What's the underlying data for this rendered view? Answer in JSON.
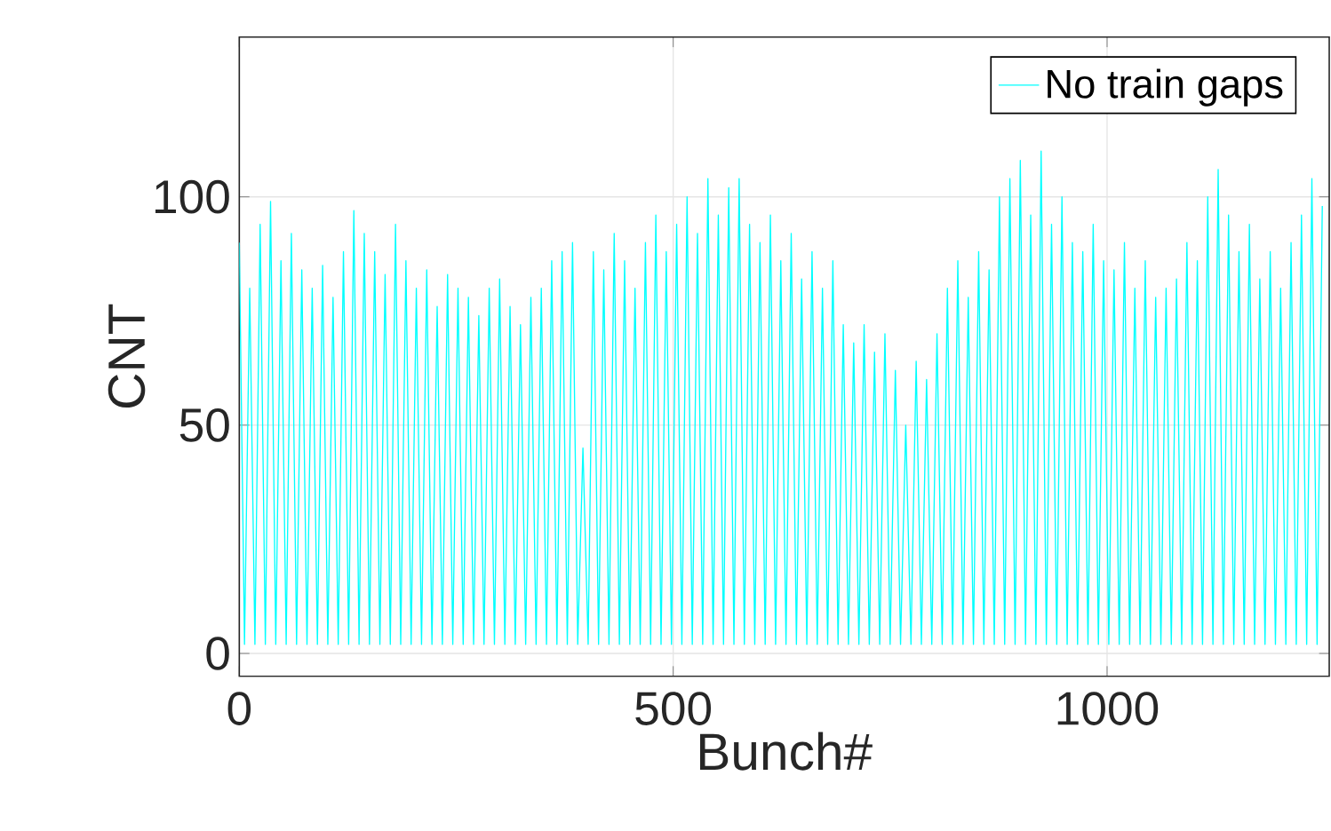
{
  "chart_data": {
    "type": "line",
    "xlabel": "Bunch#",
    "ylabel": "CNT",
    "xlim": [
      0,
      1256
    ],
    "ylim": [
      -5,
      135
    ],
    "xticks": [
      0,
      500,
      1000
    ],
    "yticks": [
      0,
      50,
      100
    ],
    "grid": true,
    "legend": "top right",
    "series": [
      {
        "name": "No train gaps",
        "color": "#00ffff",
        "x": [
          0,
          6,
          12,
          18,
          24,
          30,
          36,
          42,
          48,
          54,
          60,
          66,
          72,
          78,
          84,
          90,
          96,
          102,
          108,
          114,
          120,
          126,
          132,
          138,
          144,
          150,
          156,
          162,
          168,
          174,
          180,
          186,
          192,
          198,
          204,
          210,
          216,
          222,
          228,
          234,
          240,
          246,
          252,
          258,
          264,
          270,
          276,
          282,
          288,
          294,
          300,
          306,
          312,
          318,
          324,
          330,
          336,
          342,
          348,
          354,
          360,
          366,
          372,
          378,
          384,
          390,
          396,
          402,
          408,
          414,
          420,
          426,
          432,
          438,
          444,
          450,
          456,
          462,
          468,
          474,
          480,
          486,
          492,
          498,
          504,
          510,
          516,
          522,
          528,
          534,
          540,
          546,
          552,
          558,
          564,
          570,
          576,
          582,
          588,
          594,
          600,
          606,
          612,
          618,
          624,
          630,
          636,
          642,
          648,
          654,
          660,
          666,
          672,
          678,
          684,
          690,
          696,
          702,
          708,
          714,
          720,
          726,
          732,
          738,
          744,
          750,
          756,
          762,
          768,
          774,
          780,
          786,
          792,
          798,
          804,
          810,
          816,
          822,
          828,
          834,
          840,
          846,
          852,
          858,
          864,
          870,
          876,
          882,
          888,
          894,
          900,
          906,
          912,
          918,
          924,
          930,
          936,
          942,
          948,
          954,
          960,
          966,
          972,
          978,
          984,
          990,
          996,
          1002,
          1008,
          1014,
          1020,
          1026,
          1032,
          1038,
          1044,
          1050,
          1056,
          1062,
          1068,
          1074,
          1080,
          1086,
          1092,
          1098,
          1104,
          1110,
          1116,
          1122,
          1128,
          1134,
          1140,
          1146,
          1152,
          1158,
          1164,
          1170,
          1176,
          1182,
          1188,
          1194,
          1200,
          1206,
          1212,
          1218,
          1224,
          1230,
          1236,
          1242,
          1248
        ],
        "values": [
          90,
          2,
          80,
          2,
          94,
          2,
          99,
          2,
          86,
          2,
          92,
          2,
          84,
          2,
          80,
          2,
          85,
          2,
          78,
          2,
          88,
          2,
          97,
          2,
          92,
          2,
          88,
          2,
          83,
          2,
          94,
          2,
          86,
          2,
          80,
          2,
          84,
          2,
          76,
          2,
          83,
          2,
          80,
          2,
          78,
          2,
          74,
          2,
          80,
          2,
          82,
          2,
          76,
          2,
          72,
          2,
          78,
          2,
          80,
          2,
          86,
          2,
          88,
          2,
          90,
          2,
          45,
          2,
          88,
          2,
          84,
          2,
          92,
          2,
          86,
          2,
          80,
          2,
          90,
          2,
          96,
          2,
          88,
          2,
          94,
          2,
          100,
          2,
          92,
          2,
          104,
          2,
          96,
          2,
          102,
          2,
          104,
          2,
          94,
          2,
          90,
          2,
          96,
          2,
          86,
          2,
          92,
          2,
          82,
          2,
          88,
          2,
          80,
          2,
          86,
          2,
          72,
          2,
          68,
          2,
          72,
          2,
          66,
          2,
          70,
          2,
          62,
          2,
          50,
          2,
          64,
          2,
          60,
          2,
          70,
          2,
          80,
          2,
          86,
          2,
          78,
          2,
          88,
          2,
          84,
          2,
          100,
          2,
          104,
          2,
          108,
          2,
          96,
          2,
          110,
          2,
          94,
          2,
          100,
          2,
          90,
          2,
          88,
          2,
          94,
          2,
          86,
          2,
          84,
          2,
          90,
          2,
          80,
          2,
          86,
          2,
          78,
          2,
          80,
          2,
          82,
          2,
          90,
          2,
          86,
          2,
          100,
          2,
          106,
          2,
          96,
          2,
          88,
          2,
          94,
          2,
          82,
          2,
          88,
          2,
          80,
          2,
          90,
          2,
          96,
          2,
          104,
          2,
          98
        ]
      }
    ]
  }
}
